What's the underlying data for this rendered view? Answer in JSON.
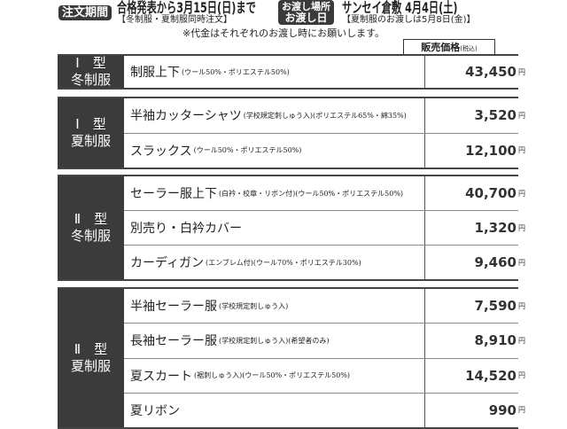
{
  "header": {
    "order_period_label": "注文期間",
    "order_period": "合格発表から3月15日(日)まで",
    "order_note": "【冬制服・夏制服同時注文】",
    "delivery_label_1": "お渡し場所",
    "delivery_label_2": "お渡し日",
    "delivery": "サンセイ倉敷 4月4日(土)",
    "delivery_note": "【夏制服のお渡しは5月8日(金)】",
    "payment_note": "※代金はそれぞれのお渡し時にお願いします。",
    "price_header": "販売価格",
    "price_header_tax": "(税込)"
  },
  "currency": "円",
  "blocks": [
    {
      "label1": "Ⅰ　型",
      "label2": "冬制服",
      "items": [
        {
          "name": "制服上下",
          "detail": "(ウール50%・ポリエステル50%)",
          "price": "43,450"
        }
      ]
    },
    {
      "label1": "Ⅰ　型",
      "label2": "夏制服",
      "items": [
        {
          "name": "半袖カッターシャツ",
          "detail": "(学校規定刺しゅう入)(ポリエステル65%・綿35%)",
          "price": "3,520"
        },
        {
          "name": "スラックス",
          "detail": "(ウール50%・ポリエステル50%)",
          "price": "12,100"
        }
      ]
    },
    {
      "label1": "Ⅱ　型",
      "label2": "冬制服",
      "items": [
        {
          "name": "セーラー服上下",
          "detail": "(白衿・校章・リボン付)(ウール50%・ポリエステル50%)",
          "price": "40,700"
        },
        {
          "name": "別売り・白衿カバー",
          "detail": "",
          "price": "1,320"
        },
        {
          "name": "カーディガン",
          "detail": "(エンブレム付)(ウール70%・ポリエステル30%)",
          "price": "9,460"
        }
      ]
    },
    {
      "label1": "Ⅱ　型",
      "label2": "夏制服",
      "items": [
        {
          "name": "半袖セーラー服",
          "detail": "(学校規定刺しゅう入)",
          "price": "7,590"
        },
        {
          "name": "長袖セーラー服",
          "detail": "(学校規定刺しゅう入)(希望者のみ)",
          "price": "8,910"
        },
        {
          "name": "夏スカート",
          "detail": "(裾刺しゅう入)(ウール50%・ポリエステル50%)",
          "price": "14,520"
        },
        {
          "name": "夏リボン",
          "detail": "",
          "price": "990"
        }
      ]
    }
  ]
}
